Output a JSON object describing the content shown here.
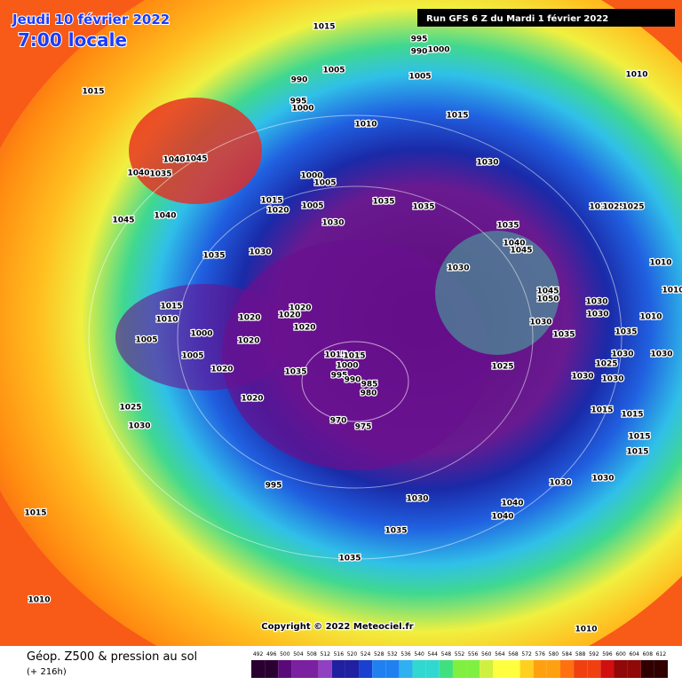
{
  "header": {
    "date": "Jeudi 10 février 2022",
    "time": "7:00 locale",
    "run": "Run GFS 6 Z du Mardi 1 février 2022"
  },
  "footer": {
    "title": "Géop. Z500 & pression au sol",
    "subtitle": "(+ 216h)",
    "copyright": "Copyright © 2022 Meteociel.fr"
  },
  "legend": {
    "values": [
      492,
      496,
      500,
      504,
      508,
      512,
      516,
      520,
      524,
      528,
      532,
      536,
      540,
      544,
      548,
      552,
      556,
      560,
      564,
      568,
      572,
      576,
      580,
      584,
      588,
      592,
      596,
      600,
      604,
      608,
      612
    ]
  },
  "isobar_labels": [
    "1015",
    "995",
    "990",
    "1000",
    "1005",
    "1005",
    "990",
    "995",
    "1000",
    "1015",
    "1010",
    "1015",
    "1010",
    "1040",
    "1045",
    "1040",
    "1035",
    "1000",
    "1005",
    "1015",
    "1020",
    "1005",
    "1035",
    "1035",
    "1030",
    "1045",
    "1040",
    "1030",
    "1035",
    "1040",
    "1045",
    "1035",
    "1030",
    "1030",
    "1010",
    "1025",
    "1025",
    "1010",
    "1010",
    "1045",
    "1050",
    "1030",
    "1030",
    "1015",
    "1010",
    "1020",
    "1020",
    "1020",
    "1000",
    "1005",
    "1020",
    "1020",
    "1030",
    "1035",
    "1010",
    "1035",
    "1005",
    "1020",
    "1015",
    "1015",
    "1000",
    "995",
    "990",
    "985",
    "980",
    "1035",
    "1025",
    "1030",
    "1030",
    "1025",
    "1030",
    "1030",
    "1020",
    "1025",
    "1030",
    "970",
    "975",
    "1015",
    "1015",
    "1015",
    "1015",
    "1030",
    "1030",
    "995",
    "1030",
    "1040",
    "1040",
    "1035",
    "1035",
    "1015",
    "1010",
    "1010"
  ]
}
